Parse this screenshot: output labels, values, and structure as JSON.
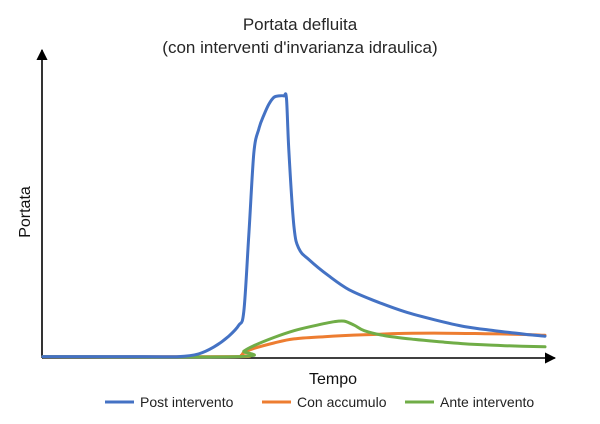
{
  "chart_data": {
    "type": "line",
    "title": "Portata defluita",
    "subtitle": "(con interventi d'invarianza idraulica)",
    "xlabel": "Tempo",
    "ylabel": "Portata",
    "x_ticks_shown": false,
    "y_ticks_shown": false,
    "grid": false,
    "legend_position": "bottom",
    "xlim": [
      0,
      100
    ],
    "ylim": [
      0,
      100
    ],
    "series": [
      {
        "name": "Post intervento",
        "color": "#4472C4",
        "points": [
          [
            0,
            0.5
          ],
          [
            20,
            0.5
          ],
          [
            27,
            0.5
          ],
          [
            31,
            1.5
          ],
          [
            34,
            4
          ],
          [
            37,
            8
          ],
          [
            39,
            12
          ],
          [
            40,
            17
          ],
          [
            41,
            45
          ],
          [
            42,
            75
          ],
          [
            43,
            84
          ],
          [
            44,
            89
          ],
          [
            45,
            93
          ],
          [
            46,
            95.5
          ],
          [
            47,
            96
          ],
          [
            48,
            96
          ],
          [
            48.5,
            95
          ],
          [
            49,
            75
          ],
          [
            50,
            48
          ],
          [
            51,
            40
          ],
          [
            53,
            36
          ],
          [
            57,
            30
          ],
          [
            61,
            25
          ],
          [
            66,
            21
          ],
          [
            72,
            17
          ],
          [
            78,
            14
          ],
          [
            84,
            11.5
          ],
          [
            90,
            10
          ],
          [
            96,
            8.7
          ],
          [
            100,
            8
          ]
        ]
      },
      {
        "name": "Con accumulo",
        "color": "#ED7D31",
        "points": [
          [
            0,
            0.5
          ],
          [
            38,
            0.5
          ],
          [
            39.5,
            1
          ],
          [
            40,
            2
          ],
          [
            42,
            3.5
          ],
          [
            46,
            5.5
          ],
          [
            50,
            7
          ],
          [
            56,
            7.8
          ],
          [
            64,
            8.5
          ],
          [
            72,
            9
          ],
          [
            80,
            9.1
          ],
          [
            88,
            8.9
          ],
          [
            96,
            8.6
          ],
          [
            100,
            8.3
          ]
        ]
      },
      {
        "name": "Ante intervento",
        "color": "#70AD47",
        "points": [
          [
            0,
            0.5
          ],
          [
            39,
            0.5
          ],
          [
            40,
            2.5
          ],
          [
            42,
            4.5
          ],
          [
            46,
            7.5
          ],
          [
            50,
            10
          ],
          [
            54,
            11.8
          ],
          [
            58,
            13.3
          ],
          [
            60,
            13.5
          ],
          [
            62,
            12
          ],
          [
            64,
            10
          ],
          [
            68,
            8.2
          ],
          [
            74,
            6.8
          ],
          [
            80,
            5.8
          ],
          [
            86,
            5
          ],
          [
            92,
            4.5
          ],
          [
            100,
            4.1
          ]
        ]
      }
    ]
  }
}
